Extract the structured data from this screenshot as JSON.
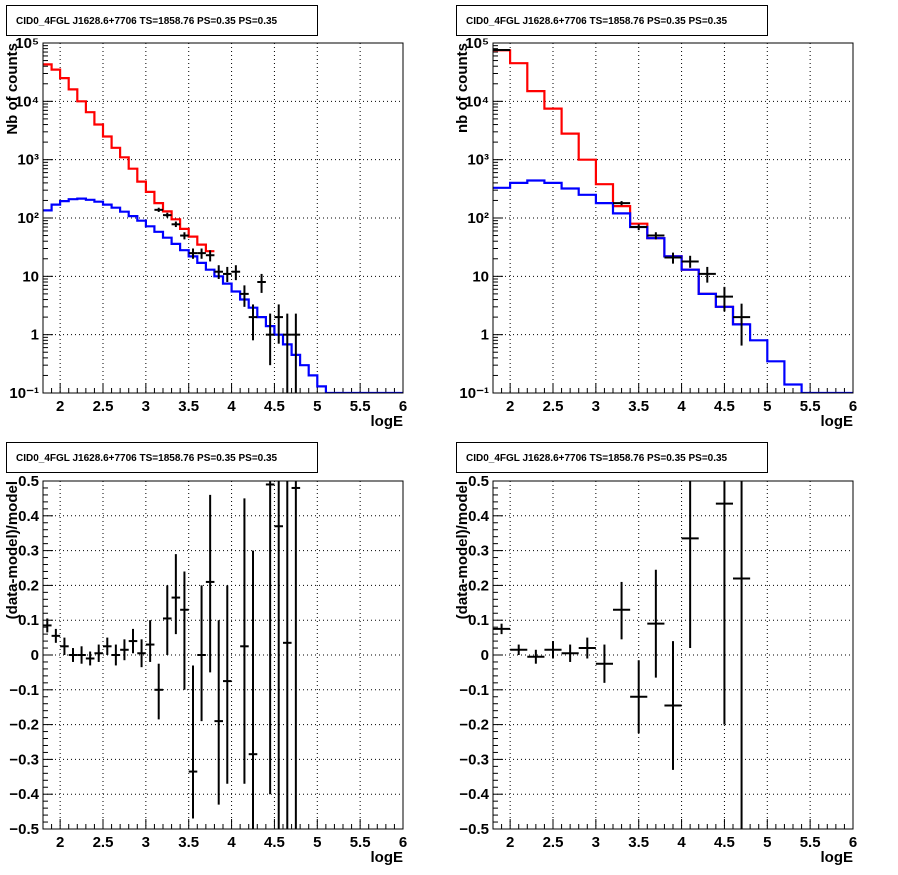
{
  "chart_data": [
    {
      "id": "counts_fine",
      "type": "line",
      "title": "CID0_4FGL J1628.6+7706 TS=1858.76 PS=0.35 PS=0.35",
      "xlabel": "logE",
      "ylabel": "Nb of counts",
      "xscale": "linear",
      "yscale": "log",
      "xlim": [
        1.8,
        6
      ],
      "ylim": [
        0.1,
        100000
      ],
      "grid": true,
      "x_tick_labels": [
        "2",
        "2.5",
        "3",
        "3.5",
        "4",
        "4.5",
        "5",
        "5.5",
        "6"
      ],
      "y_tick_labels": [
        "10⁻¹",
        "1",
        "10",
        "10²",
        "10³",
        "10⁴",
        "10⁵"
      ],
      "series": [
        {
          "kind": "step",
          "color": "#ff0000",
          "x_edges": [
            1.8,
            1.9,
            2.0,
            2.1,
            2.2,
            2.3,
            2.4,
            2.5,
            2.6,
            2.7,
            2.8,
            2.9,
            3.0,
            3.1,
            3.2,
            3.3,
            3.4,
            3.5,
            3.6,
            3.7,
            3.8
          ],
          "values": [
            43000,
            35000,
            25000,
            16000,
            10000,
            6500,
            4000,
            2500,
            1600,
            1100,
            700,
            420,
            280,
            180,
            130,
            95,
            65,
            48,
            35,
            27
          ]
        },
        {
          "kind": "step",
          "color": "#0000ff",
          "x_edges": [
            1.8,
            1.9,
            2.0,
            2.1,
            2.2,
            2.3,
            2.4,
            2.5,
            2.6,
            2.7,
            2.8,
            2.9,
            3.0,
            3.1,
            3.2,
            3.3,
            3.4,
            3.5,
            3.6,
            3.7,
            3.8,
            3.9,
            4.0,
            4.1,
            4.2,
            4.3,
            4.4,
            4.5,
            4.6,
            4.7,
            4.8,
            4.9,
            5.0,
            5.1,
            5.2,
            5.3,
            5.4,
            5.5,
            5.6,
            5.7,
            5.8,
            5.9,
            6.0
          ],
          "values": [
            135,
            170,
            195,
            210,
            215,
            205,
            190,
            170,
            150,
            128,
            108,
            90,
            72,
            58,
            46,
            36,
            28,
            22,
            17,
            13,
            10,
            7.5,
            5.5,
            4.0,
            2.9,
            2.0,
            1.4,
            1.0,
            0.68,
            0.45,
            0.3,
            0.2,
            0.13,
            0.1,
            0.1,
            0.1,
            0.1,
            0.1,
            0.1,
            0.1,
            0.1,
            0.1
          ]
        }
      ],
      "points": [
        {
          "x": 3.15,
          "y": 138,
          "xerr": 0.05,
          "ylo": 127,
          "yhi": 150
        },
        {
          "x": 3.25,
          "y": 112,
          "xerr": 0.05,
          "ylo": 102,
          "yhi": 123
        },
        {
          "x": 3.35,
          "y": 78,
          "xerr": 0.05,
          "ylo": 70,
          "yhi": 87
        },
        {
          "x": 3.45,
          "y": 50,
          "xerr": 0.05,
          "ylo": 43,
          "yhi": 57
        },
        {
          "x": 3.55,
          "y": 25,
          "xerr": 0.05,
          "ylo": 20,
          "yhi": 30
        },
        {
          "x": 3.65,
          "y": 25,
          "xerr": 0.05,
          "ylo": 20,
          "yhi": 30
        },
        {
          "x": 3.75,
          "y": 23,
          "xerr": 0.05,
          "ylo": 18,
          "yhi": 28
        },
        {
          "x": 3.85,
          "y": 12,
          "xerr": 0.05,
          "ylo": 9,
          "yhi": 15.5
        },
        {
          "x": 3.95,
          "y": 11,
          "xerr": 0.05,
          "ylo": 8,
          "yhi": 14.5
        },
        {
          "x": 4.05,
          "y": 12,
          "xerr": 0.05,
          "ylo": 8.6,
          "yhi": 15.5
        },
        {
          "x": 4.15,
          "y": 5,
          "xerr": 0.05,
          "ylo": 3,
          "yhi": 7
        },
        {
          "x": 4.25,
          "y": 2,
          "xerr": 0.05,
          "ylo": 0.8,
          "yhi": 3.3
        },
        {
          "x": 4.35,
          "y": 8,
          "xerr": 0.05,
          "ylo": 5.2,
          "yhi": 11
        },
        {
          "x": 4.45,
          "y": 1,
          "xerr": 0.05,
          "ylo": 0.3,
          "yhi": 2.3
        },
        {
          "x": 4.55,
          "y": 2,
          "xerr": 0.05,
          "ylo": 0.7,
          "yhi": 3.3
        },
        {
          "x": 4.65,
          "y": 1,
          "xerr": 0.05,
          "ylo": 0.1,
          "yhi": 2.3
        },
        {
          "x": 4.75,
          "y": 1,
          "xerr": 0.05,
          "ylo": 0.1,
          "yhi": 2.3
        }
      ]
    },
    {
      "id": "counts_coarse",
      "type": "line",
      "title": "CID0_4FGL J1628.6+7706 TS=1858.76 PS=0.35 PS=0.35",
      "xlabel": "logE",
      "ylabel": "nb of counts",
      "xscale": "linear",
      "yscale": "log",
      "xlim": [
        1.8,
        6
      ],
      "ylim": [
        0.1,
        100000
      ],
      "grid": true,
      "x_tick_labels": [
        "2",
        "2.5",
        "3",
        "3.5",
        "4",
        "4.5",
        "5",
        "5.5",
        "6"
      ],
      "y_tick_labels": [
        "10⁻¹",
        "1",
        "10",
        "10²",
        "10³",
        "10⁴",
        "10⁵"
      ],
      "series": [
        {
          "kind": "step",
          "color": "#ff0000",
          "x_edges": [
            1.8,
            2.0,
            2.2,
            2.4,
            2.6,
            2.8,
            3.0,
            3.2,
            3.4,
            3.6,
            3.8,
            4.0,
            4.2,
            4.4,
            4.6,
            4.8
          ],
          "values": [
            75000,
            45000,
            15000,
            7500,
            2800,
            1000,
            380,
            160,
            80,
            45,
            22,
            13,
            5,
            3,
            1.5
          ]
        },
        {
          "kind": "step",
          "color": "#0000ff",
          "x_edges": [
            1.8,
            2.0,
            2.2,
            2.4,
            2.6,
            2.8,
            3.0,
            3.2,
            3.4,
            3.6,
            3.8,
            4.0,
            4.2,
            4.4,
            4.6,
            4.8,
            5.0,
            5.2,
            5.4,
            5.6,
            5.8,
            6.0
          ],
          "values": [
            330,
            400,
            440,
            400,
            320,
            250,
            180,
            120,
            70,
            45,
            22,
            13,
            5,
            3,
            1.5,
            0.8,
            0.35,
            0.14,
            0.1,
            0.1,
            0.1
          ]
        }
      ],
      "points": [
        {
          "x": 1.9,
          "y": 76000,
          "xerr": 0.1,
          "ylo": 74000,
          "yhi": 78000
        },
        {
          "x": 3.3,
          "y": 180,
          "xerr": 0.1,
          "ylo": 165,
          "yhi": 195
        },
        {
          "x": 3.5,
          "y": 70,
          "xerr": 0.1,
          "ylo": 62,
          "yhi": 78
        },
        {
          "x": 3.7,
          "y": 50,
          "xerr": 0.1,
          "ylo": 43,
          "yhi": 57
        },
        {
          "x": 3.9,
          "y": 21,
          "xerr": 0.1,
          "ylo": 16.5,
          "yhi": 25.5
        },
        {
          "x": 4.1,
          "y": 18,
          "xerr": 0.1,
          "ylo": 14,
          "yhi": 22.5
        },
        {
          "x": 4.3,
          "y": 11,
          "xerr": 0.1,
          "ylo": 7.8,
          "yhi": 14.5
        },
        {
          "x": 4.5,
          "y": 4.5,
          "xerr": 0.1,
          "ylo": 2.5,
          "yhi": 6.6
        },
        {
          "x": 4.7,
          "y": 2,
          "xerr": 0.1,
          "ylo": 0.65,
          "yhi": 3.4
        }
      ]
    },
    {
      "id": "resid_fine",
      "type": "scatter",
      "title": "CID0_4FGL J1628.6+7706 TS=1858.76 PS=0.35 PS=0.35",
      "xlabel": "logE",
      "ylabel": "(data-model)/model",
      "xscale": "linear",
      "yscale": "linear",
      "xlim": [
        1.8,
        6
      ],
      "ylim": [
        -0.5,
        0.5
      ],
      "grid": true,
      "x_tick_labels": [
        "2",
        "2.5",
        "3",
        "3.5",
        "4",
        "4.5",
        "5",
        "5.5",
        "6"
      ],
      "y_tick_labels": [
        "−0.5",
        "−0.4",
        "−0.3",
        "−0.2",
        "−0.1",
        "0",
        "0.1",
        "0.2",
        "0.3",
        "0.4",
        "0.5"
      ],
      "series": [],
      "points": [
        {
          "x": 1.85,
          "y": 0.085,
          "xerr": 0.05,
          "ylo": 0.065,
          "yhi": 0.105
        },
        {
          "x": 1.95,
          "y": 0.055,
          "xerr": 0.05,
          "ylo": 0.035,
          "yhi": 0.075
        },
        {
          "x": 2.05,
          "y": 0.025,
          "xerr": 0.05,
          "ylo": 0.0,
          "yhi": 0.05
        },
        {
          "x": 2.15,
          "y": 0.0,
          "xerr": 0.05,
          "ylo": -0.02,
          "yhi": 0.02
        },
        {
          "x": 2.25,
          "y": 0.0,
          "xerr": 0.05,
          "ylo": -0.025,
          "yhi": 0.025
        },
        {
          "x": 2.35,
          "y": -0.01,
          "xerr": 0.05,
          "ylo": -0.03,
          "yhi": 0.01
        },
        {
          "x": 2.45,
          "y": 0.005,
          "xerr": 0.05,
          "ylo": -0.02,
          "yhi": 0.03
        },
        {
          "x": 2.55,
          "y": 0.025,
          "xerr": 0.05,
          "ylo": 0.0,
          "yhi": 0.05
        },
        {
          "x": 2.65,
          "y": 0.0,
          "xerr": 0.05,
          "ylo": -0.03,
          "yhi": 0.03
        },
        {
          "x": 2.75,
          "y": 0.015,
          "xerr": 0.05,
          "ylo": -0.015,
          "yhi": 0.045
        },
        {
          "x": 2.85,
          "y": 0.04,
          "xerr": 0.05,
          "ylo": 0.005,
          "yhi": 0.075
        },
        {
          "x": 2.95,
          "y": 0.005,
          "xerr": 0.05,
          "ylo": -0.035,
          "yhi": 0.045
        },
        {
          "x": 3.05,
          "y": 0.03,
          "xerr": 0.05,
          "ylo": -0.02,
          "yhi": 0.1
        },
        {
          "x": 3.15,
          "y": -0.1,
          "xerr": 0.05,
          "ylo": -0.185,
          "yhi": -0.025
        },
        {
          "x": 3.25,
          "y": 0.105,
          "xerr": 0.05,
          "ylo": 0.0,
          "yhi": 0.2
        },
        {
          "x": 3.35,
          "y": 0.165,
          "xerr": 0.05,
          "ylo": 0.06,
          "yhi": 0.29
        },
        {
          "x": 3.45,
          "y": 0.13,
          "xerr": 0.05,
          "ylo": -0.1,
          "yhi": 0.24
        },
        {
          "x": 3.55,
          "y": -0.335,
          "xerr": 0.05,
          "ylo": -0.47,
          "yhi": -0.03
        },
        {
          "x": 3.65,
          "y": 0.0,
          "xerr": 0.05,
          "ylo": -0.19,
          "yhi": 0.2
        },
        {
          "x": 3.75,
          "y": 0.21,
          "xerr": 0.05,
          "ylo": -0.05,
          "yhi": 0.46
        },
        {
          "x": 3.85,
          "y": -0.19,
          "xerr": 0.05,
          "ylo": -0.43,
          "yhi": 0.1
        },
        {
          "x": 3.95,
          "y": -0.075,
          "xerr": 0.05,
          "ylo": -0.37,
          "yhi": 0.2
        },
        {
          "x": 4.15,
          "y": 0.025,
          "xerr": 0.05,
          "ylo": -0.37,
          "yhi": 0.45
        },
        {
          "x": 4.25,
          "y": -0.285,
          "xerr": 0.05,
          "ylo": -0.5,
          "yhi": 0.3
        },
        {
          "x": 4.45,
          "y": 0.49,
          "xerr": 0.05,
          "ylo": -0.4,
          "yhi": 0.5
        },
        {
          "x": 4.55,
          "y": 0.37,
          "xerr": 0.05,
          "ylo": -0.5,
          "yhi": 0.5
        },
        {
          "x": 4.65,
          "y": 0.035,
          "xerr": 0.05,
          "ylo": -0.5,
          "yhi": 0.5
        },
        {
          "x": 4.75,
          "y": 0.48,
          "xerr": 0.05,
          "ylo": -0.5,
          "yhi": 0.5
        }
      ]
    },
    {
      "id": "resid_coarse",
      "type": "scatter",
      "title": "CID0_4FGL J1628.6+7706 TS=1858.76 PS=0.35 PS=0.35",
      "xlabel": "logE",
      "ylabel": "(data-model)/model",
      "xscale": "linear",
      "yscale": "linear",
      "xlim": [
        1.8,
        6
      ],
      "ylim": [
        -0.5,
        0.5
      ],
      "grid": true,
      "x_tick_labels": [
        "2",
        "2.5",
        "3",
        "3.5",
        "4",
        "4.5",
        "5",
        "5.5",
        "6"
      ],
      "y_tick_labels": [
        "−0.5",
        "−0.4",
        "−0.3",
        "−0.2",
        "−0.1",
        "0",
        "0.1",
        "0.2",
        "0.3",
        "0.4",
        "0.5"
      ],
      "series": [],
      "points": [
        {
          "x": 1.9,
          "y": 0.075,
          "xerr": 0.1,
          "ylo": 0.06,
          "yhi": 0.09
        },
        {
          "x": 2.1,
          "y": 0.015,
          "xerr": 0.1,
          "ylo": 0.0,
          "yhi": 0.03
        },
        {
          "x": 2.3,
          "y": -0.005,
          "xerr": 0.1,
          "ylo": -0.025,
          "yhi": 0.015
        },
        {
          "x": 2.5,
          "y": 0.015,
          "xerr": 0.1,
          "ylo": -0.01,
          "yhi": 0.04
        },
        {
          "x": 2.7,
          "y": 0.005,
          "xerr": 0.1,
          "ylo": -0.02,
          "yhi": 0.03
        },
        {
          "x": 2.9,
          "y": 0.02,
          "xerr": 0.1,
          "ylo": -0.01,
          "yhi": 0.05
        },
        {
          "x": 3.1,
          "y": -0.025,
          "xerr": 0.1,
          "ylo": -0.08,
          "yhi": 0.03
        },
        {
          "x": 3.3,
          "y": 0.13,
          "xerr": 0.1,
          "ylo": 0.045,
          "yhi": 0.21
        },
        {
          "x": 3.5,
          "y": -0.12,
          "xerr": 0.1,
          "ylo": -0.225,
          "yhi": -0.015
        },
        {
          "x": 3.7,
          "y": 0.09,
          "xerr": 0.1,
          "ylo": -0.065,
          "yhi": 0.245
        },
        {
          "x": 3.9,
          "y": -0.145,
          "xerr": 0.1,
          "ylo": -0.33,
          "yhi": 0.04
        },
        {
          "x": 4.1,
          "y": 0.335,
          "xerr": 0.1,
          "ylo": 0.02,
          "yhi": 0.5
        },
        {
          "x": 4.5,
          "y": 0.435,
          "xerr": 0.1,
          "ylo": -0.2,
          "yhi": 0.5
        },
        {
          "x": 4.7,
          "y": 0.22,
          "xerr": 0.1,
          "ylo": -0.5,
          "yhi": 0.5
        }
      ]
    }
  ]
}
